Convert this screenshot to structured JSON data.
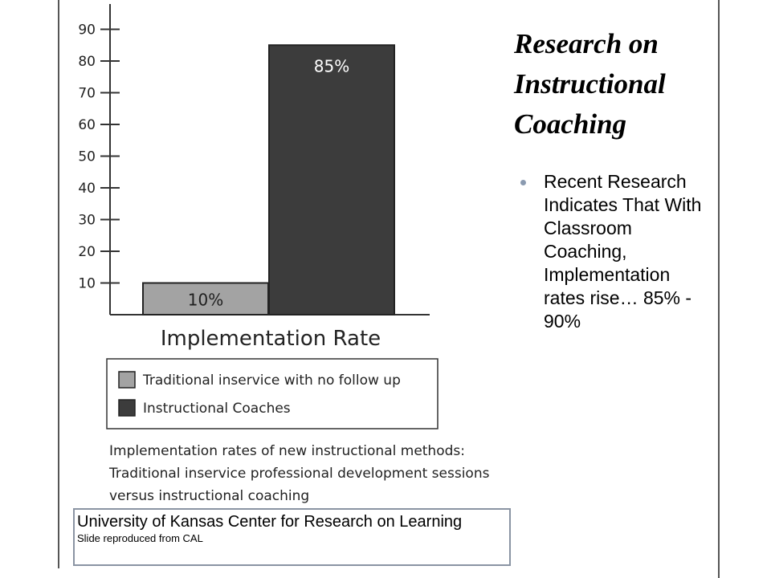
{
  "slide": {
    "title": "Research on Instructional Coaching",
    "bullets": [
      "Recent Research Indicates That With Classroom Coaching, Implementation rates rise… 85% - 90%"
    ],
    "source_line": "University of Kansas Center for Research on Learning",
    "source_small": "Slide reproduced from CAL"
  },
  "chart_data": {
    "type": "bar",
    "categories": [
      "Traditional inservice with no follow up",
      "Instructional Coaches"
    ],
    "values": [
      10,
      85
    ],
    "data_labels": [
      "10%",
      "85%"
    ],
    "xlabel": "Implementation Rate",
    "ylabel": "",
    "yticks": [
      10,
      20,
      30,
      40,
      50,
      60,
      70,
      80,
      90
    ],
    "ylim": [
      0,
      90
    ],
    "grid": false,
    "legend": {
      "placement": "bottom",
      "entries": [
        {
          "label": "Traditional inservice with no follow up",
          "color": "#a3a3a3"
        },
        {
          "label": "Instructional Coaches",
          "color": "#3c3c3c"
        }
      ]
    },
    "bar_colors": [
      "#a3a3a3",
      "#3c3c3c"
    ],
    "label_colors": [
      "#1f1f1f",
      "#ffffff"
    ],
    "caption": "Implementation rates of new instructional methods: Traditional inservice professional development sessions versus instructional coaching"
  }
}
